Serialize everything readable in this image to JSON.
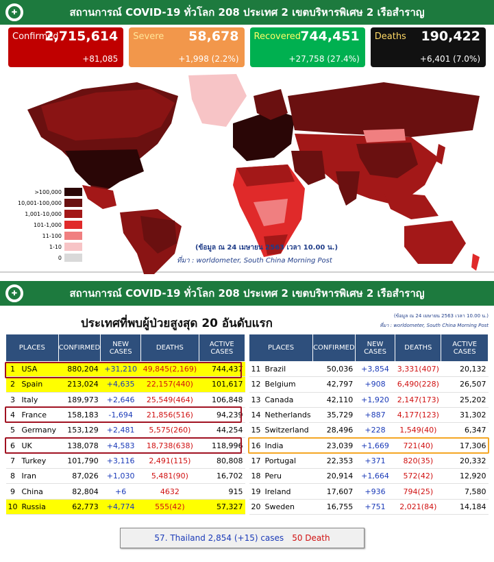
{
  "header": {
    "title": "สถานการณ์ COVID-19 ทั่วโลก 208 ประเทศ 2 เขตบริหารพิเศษ 2 เรือสำราญ"
  },
  "stats": [
    {
      "label": "Confirmed",
      "value": "2,715,614",
      "change": "+81,085"
    },
    {
      "label": "Severe",
      "value": "58,678",
      "change": "+1,998 (2.2%)"
    },
    {
      "label": "Recovered",
      "value": "744,451",
      "change": "+27,758 (27.4%)"
    },
    {
      "label": "Deaths",
      "value": "190,422",
      "change": "+6,401 (7.0%)"
    }
  ],
  "legend": [
    {
      "label": ">100,000",
      "color": "#2a0606"
    },
    {
      "label": "10,001-100,000",
      "color": "#6a1010"
    },
    {
      "label": "1,001-10,000",
      "color": "#a31818"
    },
    {
      "label": "101-1,000",
      "color": "#e02a2a"
    },
    {
      "label": "11-100",
      "color": "#f07f80"
    },
    {
      "label": "1-10",
      "color": "#f7c4c6"
    },
    {
      "label": "0",
      "color": "#d9d9d9"
    }
  ],
  "map_note": {
    "date": "(ข้อมูล ณ 24 เมษายน 2563 เวลา 10.00 น.)",
    "source": "ที่มา : worldometer, South China Morning Post"
  },
  "top20": {
    "title": "ประเทศที่พบผู้ป่วยสูงสุด 20 อันดับแรก",
    "date_small": "(ข้อมูล ณ 24 เมษายน 2563 เวลา 10.00 น.)",
    "source_small": "ที่มา : worldometer,  South China Morning Post",
    "columns": [
      "PLACES",
      "CONFIRMED",
      "NEW CASES",
      "DEATHS",
      "ACTIVE CASES"
    ],
    "left": [
      [
        "1",
        "USA",
        "880,204",
        "+31,210",
        "49,845(2,169)",
        "744,437"
      ],
      [
        "2",
        "Spain",
        "213,024",
        "+4,635",
        "22,157(440)",
        "101,617"
      ],
      [
        "3",
        "Italy",
        "189,973",
        "+2,646",
        "25,549(464)",
        "106,848"
      ],
      [
        "4",
        "France",
        "158,183",
        "-1,694",
        "21,856(516)",
        "94,239"
      ],
      [
        "5",
        "Germany",
        "153,129",
        "+2,481",
        "5,575(260)",
        "44,254"
      ],
      [
        "6",
        "UK",
        "138,078",
        "+4,583",
        "18,738(638)",
        "118,996"
      ],
      [
        "7",
        "Turkey",
        "101,790",
        "+3,116",
        "2,491(115)",
        "80,808"
      ],
      [
        "8",
        "Iran",
        "87,026",
        "+1,030",
        "5,481(90)",
        "16,702"
      ],
      [
        "9",
        "China",
        "82,804",
        "+6",
        "4632",
        "915"
      ],
      [
        "10",
        "Russia",
        "62,773",
        "+4,774",
        "555(42)",
        "57,327"
      ]
    ],
    "right": [
      [
        "11",
        "Brazil",
        "50,036",
        "+3,854",
        "3,331(407)",
        "20,132"
      ],
      [
        "12",
        "Belgium",
        "42,797",
        "+908",
        "6,490(228)",
        "26,507"
      ],
      [
        "13",
        "Canada",
        "42,110",
        "+1,920",
        "2,147(173)",
        "25,202"
      ],
      [
        "14",
        "Netherlands",
        "35,729",
        "+887",
        "4,177(123)",
        "31,302"
      ],
      [
        "15",
        "Switzerland",
        "28,496",
        "+228",
        "1,549(40)",
        "6,347"
      ],
      [
        "16",
        "India",
        "23,039",
        "+1,669",
        "721(40)",
        "17,306"
      ],
      [
        "17",
        "Portugal",
        "22,353",
        "+371",
        "820(35)",
        "20,332"
      ],
      [
        "18",
        "Peru",
        "20,914",
        "+1,664",
        "572(42)",
        "12,920"
      ],
      [
        "19",
        "Ireland",
        "17,607",
        "+936",
        "794(25)",
        "7,580"
      ],
      [
        "20",
        "Sweden",
        "16,755",
        "+751",
        "2,021(84)",
        "14,184"
      ]
    ]
  },
  "thailand": {
    "cases": "57. Thailand 2,854 (+15) cases",
    "deaths": "50 Death"
  }
}
